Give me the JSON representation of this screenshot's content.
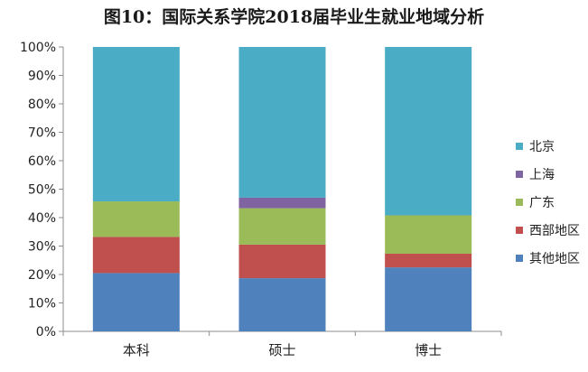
{
  "chart_data": {
    "type": "bar",
    "stacked": true,
    "percent": true,
    "title": "图10：国际关系学院2018届毕业生就业地域分析",
    "categories": [
      "本科",
      "硕士",
      "博士"
    ],
    "series": [
      {
        "name": "其他地区",
        "color": "#4f81bd",
        "values": [
          20.5,
          18.7,
          22.5
        ]
      },
      {
        "name": "西部地区",
        "color": "#c0504d",
        "values": [
          12.7,
          11.8,
          4.8
        ]
      },
      {
        "name": "广东",
        "color": "#9bbb59",
        "values": [
          12.5,
          12.8,
          13.5
        ]
      },
      {
        "name": "上海",
        "color": "#8064a2",
        "values": [
          0,
          3.7,
          0
        ]
      },
      {
        "name": "北京",
        "color": "#4bacc6",
        "values": [
          54.3,
          53.0,
          59.2
        ]
      }
    ],
    "legend_order": [
      4,
      3,
      2,
      1,
      0
    ],
    "yticks": [
      "0%",
      "10%",
      "20%",
      "30%",
      "40%",
      "50%",
      "60%",
      "70%",
      "80%",
      "90%",
      "100%"
    ],
    "ylim": [
      0,
      100
    ],
    "xlabel": "",
    "ylabel": "",
    "grid": false,
    "legend_position": "right"
  }
}
